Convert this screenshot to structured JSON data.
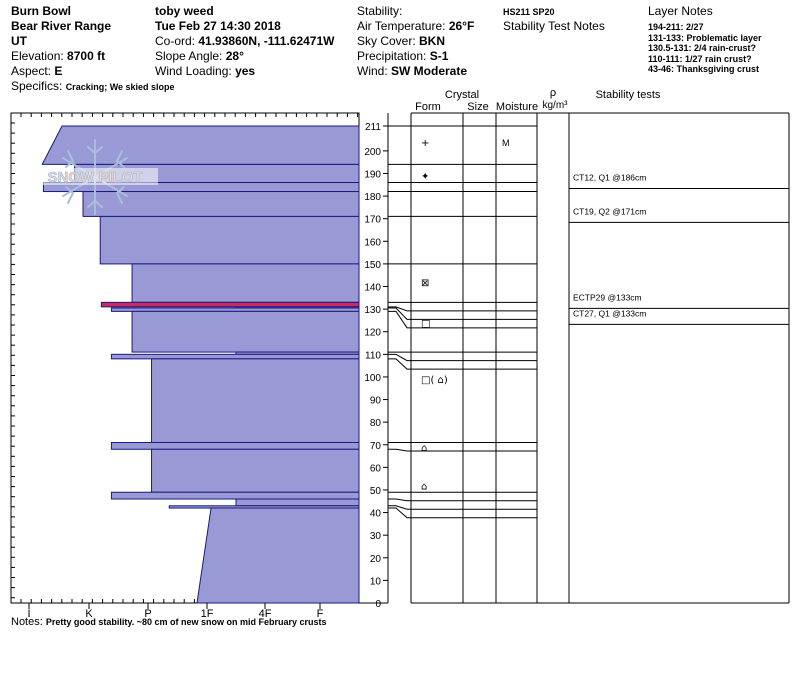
{
  "header": {
    "location": "Burn Bowl",
    "range": "Bear River Range",
    "state": "UT",
    "elevation_label": "Elevation: ",
    "elevation": "8700 ft",
    "aspect_label": "Aspect: ",
    "aspect": "E",
    "specifics_label": "Specifics: ",
    "specifics": "Cracking; We skied slope",
    "observer": "toby weed",
    "datetime": "Tue Feb 27 14:30 2018",
    "coord_label": "Co-ord: ",
    "coord": "41.93860N, -111.62471W",
    "slope_label": "Slope Angle: ",
    "slope": "28°",
    "wind_loading_label": "Wind Loading: ",
    "wind_loading": "yes",
    "stability_label": "Stability:",
    "air_temp_label": "Air Temperature: ",
    "air_temp": "26°F",
    "sky_label": "Sky Cover: ",
    "sky": "BKN",
    "precip_label": "Precipitation: ",
    "precip": "S-1",
    "wind_label": "Wind: ",
    "wind": "SW Moderate",
    "hs_code": "HS211 SP20",
    "stability_notes_title": "Stability Test Notes",
    "layer_notes_title": "Layer Notes",
    "layer_notes": [
      "194-211: 2/27",
      "131-133: Problematic layer",
      "130.5-131: 2/4 rain-crust?",
      "110-111: 1/27 rain crust?",
      "43-46: Thanksgiving crust"
    ]
  },
  "logo_text": "SNOW PILOT",
  "notes_label": "Notes: ",
  "notes": "Pretty good stability.  ~80 cm of new snow on mid February crusts",
  "colors": {
    "layer_fill": "#9999d6",
    "layer_stroke": "#1a1a80",
    "highlight": "#cc2a60",
    "logo": "#a9bfd8"
  },
  "chart_data": {
    "type": "snow_profile",
    "snow_height_cm": 211,
    "y_axis": {
      "min": 0,
      "max": 211,
      "ticks": [
        0,
        10,
        20,
        30,
        40,
        50,
        60,
        70,
        80,
        90,
        100,
        110,
        120,
        130,
        140,
        150,
        160,
        170,
        180,
        190,
        200,
        211
      ]
    },
    "hardness_axis": {
      "ticks": [
        "I",
        "K",
        "P",
        "1F",
        "4F",
        "F"
      ]
    },
    "column_headers": {
      "crystal": "Crystal",
      "form": "Form",
      "size": "Size",
      "moisture": "Moisture",
      "rho": "ρ",
      "density_unit": "kg/m³",
      "stability_tests": "Stability tests"
    },
    "layers": [
      {
        "top": 211,
        "bottom": 194,
        "hardness_top": 0.55,
        "hardness_bottom": 0.22
      },
      {
        "top": 194,
        "bottom": 186,
        "hardness": 0.76
      },
      {
        "top": 186,
        "bottom": 182,
        "hardness": 0.24
      },
      {
        "top": 182,
        "bottom": 171,
        "hardness": 0.9
      },
      {
        "top": 171,
        "bottom": 150,
        "hardness": 1.19
      },
      {
        "top": 150,
        "bottom": 133,
        "hardness": 1.73
      },
      {
        "top": 133,
        "bottom": 131,
        "hardness": 1.21,
        "highlight": true
      },
      {
        "top": 131,
        "bottom": 130.5,
        "hardness": 3.5
      },
      {
        "top": 130.5,
        "bottom": 129,
        "hardness": 1.38
      },
      {
        "top": 129,
        "bottom": 111,
        "hardness": 1.73
      },
      {
        "top": 111,
        "bottom": 110,
        "hardness": 3.5
      },
      {
        "top": 110,
        "bottom": 108,
        "hardness": 1.38
      },
      {
        "top": 108,
        "bottom": 71,
        "hardness": 2.06
      },
      {
        "top": 71,
        "bottom": 68,
        "hardness": 1.38
      },
      {
        "top": 68,
        "bottom": 49,
        "hardness": 2.06
      },
      {
        "top": 49,
        "bottom": 46,
        "hardness": 1.38
      },
      {
        "top": 46,
        "bottom": 43,
        "hardness": 3.5
      },
      {
        "top": 43,
        "bottom": 42,
        "hardness": 2.36
      },
      {
        "top": 42,
        "bottom": 0,
        "hardness_top": 3.07,
        "hardness_bottom": 2.83
      }
    ],
    "boundaries": [
      211,
      194,
      186,
      182,
      171,
      150,
      133,
      131,
      130.5,
      129,
      111,
      110,
      108,
      71,
      68,
      49,
      46,
      43,
      42
    ],
    "grain_forms": [
      {
        "height": 204,
        "symbol": "+",
        "moisture": "M"
      },
      {
        "height": 189,
        "symbol": "✦"
      },
      {
        "height": 142,
        "symbol": "⊠"
      },
      {
        "height": 124,
        "symbol": "□"
      },
      {
        "height": 99,
        "symbol": "□( ⌂)"
      },
      {
        "height": 69,
        "symbol": "⌂"
      },
      {
        "height": 52,
        "symbol": "⌂"
      }
    ],
    "stability_tests": [
      {
        "height": 186,
        "text": "CT12, Q1 @186cm"
      },
      {
        "height": 171,
        "text": "CT19, Q2 @171cm"
      },
      {
        "height": 133,
        "text": "ECTP29 @133cm"
      },
      {
        "height": 133,
        "text": "CT27, Q1 @133cm"
      }
    ]
  }
}
